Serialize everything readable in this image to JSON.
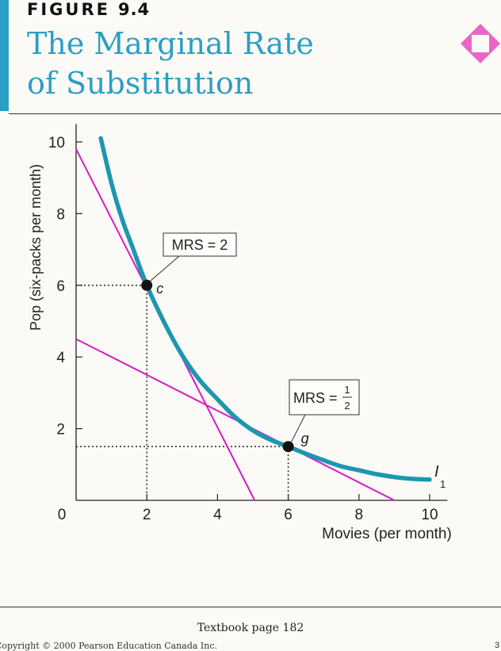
{
  "header": {
    "figure_word": "FIGURE",
    "figure_number": "9.4",
    "title_line1": "The Marginal Rate",
    "title_line2": "of Substitution"
  },
  "colors": {
    "accent": "#2b9fc6",
    "curve": "#1d97b0",
    "tangent": "#d61cc4",
    "diamond": "#e866c8"
  },
  "chart_data": {
    "type": "line",
    "xlabel": "Movies (per month)",
    "ylabel": "Pop (six-packs per month)",
    "xlim": [
      0,
      10.5
    ],
    "ylim": [
      0,
      10.5
    ],
    "xticks": [
      0,
      2,
      4,
      6,
      8,
      10
    ],
    "yticks": [
      2,
      4,
      6,
      8,
      10
    ],
    "origin_label": "0",
    "series": [
      {
        "name": "Indifference curve",
        "label": "I",
        "label_sub": "1",
        "x": [
          0.7,
          1.0,
          1.3,
          1.6,
          2.0,
          2.5,
          3.0,
          3.5,
          4.0,
          4.5,
          5.0,
          5.5,
          6.0,
          6.5,
          7.0,
          7.5,
          8.0,
          8.5,
          9.0,
          9.5,
          10.0
        ],
        "y": [
          10.1,
          8.85,
          7.85,
          7.05,
          6.0,
          4.95,
          4.05,
          3.35,
          2.82,
          2.32,
          1.95,
          1.69,
          1.5,
          1.3,
          1.12,
          0.95,
          0.84,
          0.73,
          0.65,
          0.6,
          0.58
        ]
      },
      {
        "name": "Tangent at c",
        "x": [
          0,
          5.05
        ],
        "y": [
          9.8,
          0
        ]
      },
      {
        "name": "Tangent at g",
        "x": [
          0,
          9
        ],
        "y": [
          4.5,
          0
        ]
      }
    ],
    "points": [
      {
        "label": "c",
        "x": 2,
        "y": 6
      },
      {
        "label": "g",
        "x": 6,
        "y": 1.5
      }
    ],
    "annotations": [
      {
        "text": "MRS = 2",
        "point": "c"
      },
      {
        "text_prefix": "MRS =",
        "numerator": "1",
        "denominator": "2",
        "point": "g"
      }
    ]
  },
  "footer": {
    "textbook_ref": "Textbook page 182",
    "copyright": "Copyright © 2000 Pearson Education Canada Inc.",
    "page_corner": "3"
  }
}
